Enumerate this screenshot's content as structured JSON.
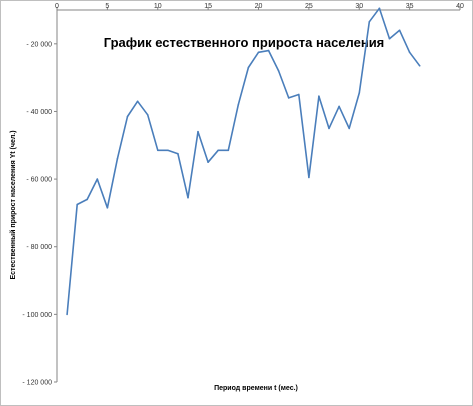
{
  "chart_data": {
    "type": "line",
    "title": "График естественного прироста населения",
    "xlabel": "Период времени t  (мес.)",
    "ylabel": "Естественный прирост населения Yt (чел.)",
    "xlim": [
      0,
      40
    ],
    "ylim": [
      -120000,
      -10000
    ],
    "x_ticks": [
      "0",
      "5",
      "10",
      "15",
      "20",
      "25",
      "30",
      "35",
      "40"
    ],
    "y_ticks": [
      "- 20 000",
      "- 40 000",
      "- 60 000",
      "- 80 000",
      "- 100 000",
      "- 120 000"
    ],
    "grid": false,
    "legend": "none",
    "series_color": "#4a7ebb",
    "series": [
      {
        "x": [
          1,
          2,
          3,
          4,
          5,
          6,
          7,
          8,
          9,
          10,
          11,
          12,
          13,
          14,
          15,
          16,
          17,
          18,
          19,
          20,
          21,
          22,
          23,
          24,
          25,
          26,
          27,
          28,
          29,
          30,
          31,
          32,
          33,
          34,
          35,
          36
        ],
        "values": [
          -100000,
          -67500,
          -66000,
          -60000,
          -68500,
          -54000,
          -41500,
          -37000,
          -41000,
          -51500,
          -51500,
          -52500,
          -65500,
          -46000,
          -55000,
          -51500,
          -51500,
          -38000,
          -27000,
          -22500,
          -22000,
          -28000,
          -36000,
          -35000,
          -59500,
          -35500,
          -45000,
          -38500,
          -45000,
          -34500,
          -13500,
          -9500,
          -18500,
          -16000,
          -22500,
          -26500
        ]
      }
    ]
  }
}
